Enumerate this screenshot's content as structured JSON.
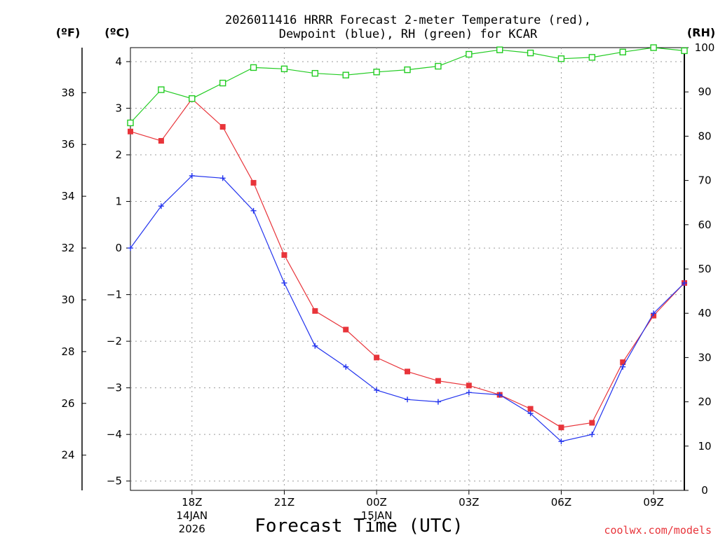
{
  "title_line1": "2026011416 HRRR Forecast 2-meter Temperature (red),",
  "title_line2": "Dewpoint (blue), RH (green) for KCAR",
  "unit_f": "(ºF)",
  "unit_c": "(ºC)",
  "unit_rh": "(RH)",
  "x_axis_label": "Forecast Time (UTC)",
  "credit": "coolwx.com/models",
  "colors": {
    "temp": "#e8343a",
    "dewpoint": "#2233ee",
    "rh": "#22cc22",
    "axis": "#000000",
    "grid": "#9a9a9a"
  },
  "chart_data": {
    "type": "line",
    "title": "2026011416 HRRR Forecast 2-meter Temperature (red), Dewpoint (blue), RH (green) for KCAR",
    "xlabel": "Forecast Time (UTC)",
    "x": [
      "16Z",
      "17Z",
      "18Z",
      "19Z",
      "20Z",
      "21Z",
      "22Z",
      "23Z",
      "00Z",
      "01Z",
      "02Z",
      "03Z",
      "04Z",
      "05Z",
      "06Z",
      "07Z",
      "08Z",
      "09Z",
      "10Z"
    ],
    "x_ticks": [
      {
        "label": "18Z",
        "index": 2,
        "date1": "14JAN",
        "date2": "2026"
      },
      {
        "label": "21Z",
        "index": 5
      },
      {
        "label": "00Z",
        "index": 8,
        "date1": "15JAN"
      },
      {
        "label": "03Z",
        "index": 11
      },
      {
        "label": "06Z",
        "index": 14
      },
      {
        "label": "09Z",
        "index": 17
      }
    ],
    "y_left_c": {
      "label": "(ºC)",
      "ylim": [
        -5.2,
        4.3
      ],
      "ticks": [
        4,
        3,
        2,
        1,
        0,
        -1,
        -2,
        -3,
        -4,
        -5
      ]
    },
    "y_left_f": {
      "label": "(ºF)",
      "ticks": [
        38,
        36,
        34,
        32,
        30,
        28,
        26,
        24
      ]
    },
    "y_right_rh": {
      "label": "(RH)",
      "ylim": [
        0,
        100
      ],
      "ticks": [
        100,
        90,
        80,
        70,
        60,
        50,
        40,
        30,
        20,
        10,
        0
      ]
    },
    "series": [
      {
        "name": "Temperature",
        "color": "red",
        "axis": "c",
        "marker": "filled-square",
        "values": [
          2.5,
          2.3,
          3.2,
          2.6,
          1.4,
          -0.15,
          -1.35,
          -1.75,
          -2.35,
          -2.65,
          -2.85,
          -2.95,
          -3.15,
          -3.45,
          -3.85,
          -3.75,
          -2.45,
          -1.45,
          -0.75
        ]
      },
      {
        "name": "Dewpoint",
        "color": "blue",
        "axis": "c",
        "marker": "plus",
        "values": [
          0.0,
          0.9,
          1.55,
          1.5,
          0.8,
          -0.75,
          -2.1,
          -2.55,
          -3.05,
          -3.25,
          -3.3,
          -3.1,
          -3.15,
          -3.55,
          -4.15,
          -4.0,
          -2.55,
          -1.4,
          -0.75
        ]
      },
      {
        "name": "RH",
        "color": "green",
        "axis": "rh",
        "marker": "open-square",
        "values": [
          83,
          90.5,
          88.5,
          92,
          95.5,
          95.2,
          94.2,
          93.8,
          94.5,
          95,
          95.8,
          98.5,
          99.5,
          98.8,
          97.5,
          97.8,
          99,
          100,
          99.3
        ]
      }
    ]
  }
}
